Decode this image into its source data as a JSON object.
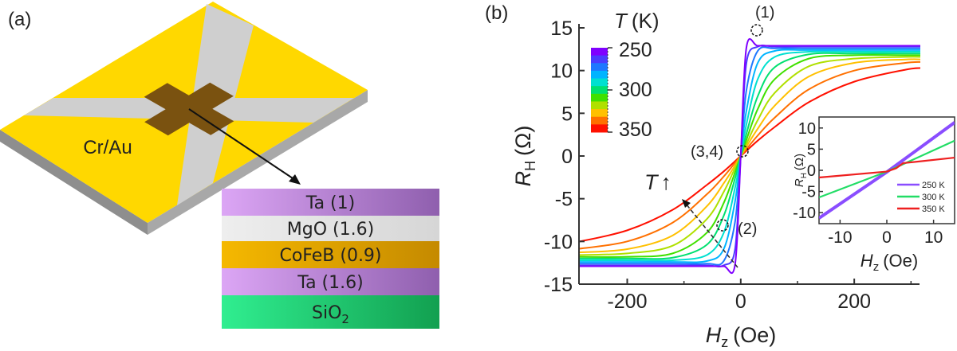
{
  "panel_a": {
    "label": "(a)",
    "substrate_label": "Cr/Au",
    "colors": {
      "gold": "#ffd800",
      "bar": "#cfcfcf",
      "cross": "#7a5210",
      "side": "#a8a8a8"
    },
    "stack": [
      {
        "text": "Ta (1)",
        "sub": "",
        "c1": "#dca6f5",
        "c2": "#8f5fae"
      },
      {
        "text": "MgO (1.6)",
        "sub": "",
        "c1": "#eeeeee",
        "c2": "#d6d6d6"
      },
      {
        "text": "CoFeB (0.9)",
        "sub": "",
        "c1": "#f5b800",
        "c2": "#c58a00"
      },
      {
        "text": "Ta (1.6)",
        "sub": "",
        "c1": "#dca6f5",
        "c2": "#8f5fae"
      },
      {
        "text": "SiO",
        "sub": "2",
        "c1": "#30ee90",
        "c2": "#12a050"
      }
    ]
  },
  "chart_data": [
    {
      "type": "line",
      "panel_label": "(b)",
      "xlabel": {
        "main": "H",
        "sub": "z",
        "unit": "(Oe)"
      },
      "ylabel": {
        "main": "R",
        "sub": "H",
        "unit": "(Ω)"
      },
      "xlim": [
        -285,
        315
      ],
      "ylim": [
        -15,
        15
      ],
      "xticks": [
        -200,
        0,
        200
      ],
      "xminor": [
        -100,
        100,
        300
      ],
      "yticks": [
        15,
        10,
        5,
        0,
        -5,
        -10,
        -15
      ],
      "grid": false,
      "colorbar": {
        "title_main": "T",
        "title_unit": "(K)",
        "ticks": [
          "250",
          "300",
          "350"
        ]
      },
      "annotations": {
        "p1": "(1)",
        "p2": "(2)",
        "p34": "(3,4)",
        "t_main": "T",
        "t_arrow": "↑"
      },
      "x": [
        -290,
        -200,
        -120,
        -60,
        -30,
        -10,
        0,
        10,
        30,
        60,
        120,
        200,
        290,
        320
      ],
      "series": [
        {
          "T": 250,
          "color": "#8000ff",
          "values": [
            -12.9,
            -12.9,
            -12.9,
            -12.9,
            -12.9,
            -12.7,
            0,
            12.7,
            12.9,
            12.9,
            12.9,
            12.9,
            12.9,
            12.9
          ]
        },
        {
          "T": 260,
          "color": "#4b3cff",
          "values": [
            -12.8,
            -12.8,
            -12.8,
            -12.8,
            -12.8,
            -10.9,
            0,
            10.9,
            12.8,
            12.8,
            12.8,
            12.8,
            12.8,
            12.8
          ]
        },
        {
          "T": 270,
          "color": "#1e78ff",
          "values": [
            -12.6,
            -12.6,
            -12.6,
            -12.6,
            -12.3,
            -7.7,
            0,
            7.7,
            12.3,
            12.6,
            12.6,
            12.6,
            12.6,
            12.6
          ]
        },
        {
          "T": 280,
          "color": "#00b4ff",
          "values": [
            -12.4,
            -12.4,
            -12.4,
            -12.3,
            -10.9,
            -5.3,
            0,
            5.3,
            10.9,
            12.3,
            12.4,
            12.4,
            12.4,
            12.4
          ]
        },
        {
          "T": 290,
          "color": "#00e0d0",
          "values": [
            -12.2,
            -12.2,
            -12.2,
            -11.6,
            -9.0,
            -3.7,
            0,
            3.7,
            9.0,
            11.6,
            12.2,
            12.2,
            12.2,
            12.2
          ]
        },
        {
          "T": 300,
          "color": "#00e070",
          "values": [
            -12.0,
            -12.0,
            -11.9,
            -10.4,
            -7.0,
            -2.6,
            0,
            2.6,
            7.0,
            10.4,
            11.9,
            12.0,
            12.0,
            12.0
          ]
        },
        {
          "T": 310,
          "color": "#40e000",
          "values": [
            -11.8,
            -11.8,
            -11.4,
            -9.0,
            -5.5,
            -1.9,
            0,
            1.9,
            5.5,
            9.0,
            11.4,
            11.8,
            11.8,
            11.8
          ]
        },
        {
          "T": 320,
          "color": "#b0e000",
          "values": [
            -11.6,
            -11.4,
            -10.5,
            -7.4,
            -4.2,
            -1.4,
            0,
            1.4,
            4.2,
            7.4,
            10.5,
            11.4,
            11.6,
            11.6
          ]
        },
        {
          "T": 330,
          "color": "#ffc000",
          "values": [
            -11.3,
            -10.9,
            -9.3,
            -5.9,
            -3.2,
            -1.1,
            0,
            1.1,
            3.2,
            5.9,
            9.3,
            10.9,
            11.3,
            11.3
          ]
        },
        {
          "T": 340,
          "color": "#ff7000",
          "values": [
            -10.9,
            -10.0,
            -7.8,
            -4.5,
            -2.4,
            -0.8,
            0,
            0.8,
            2.4,
            4.5,
            7.8,
            10.0,
            10.9,
            11.0
          ]
        },
        {
          "T": 350,
          "color": "#ff1000",
          "values": [
            -10.1,
            -8.7,
            -6.3,
            -3.4,
            -1.8,
            -0.6,
            0,
            0.6,
            1.8,
            3.4,
            6.3,
            8.7,
            10.1,
            10.3
          ]
        }
      ]
    },
    {
      "type": "line",
      "role": "inset",
      "xlabel": {
        "main": "H",
        "sub": "z",
        "unit": "(Oe)"
      },
      "ylabel": {
        "main": "R",
        "sub": "H",
        "unit": "(Ω)"
      },
      "xlim": [
        -14.5,
        14.5
      ],
      "ylim": [
        -12.6,
        12.6
      ],
      "xticks": [
        -10,
        0,
        10
      ],
      "yticks": [
        10,
        5,
        0,
        -5,
        -10
      ],
      "legend_position": "bottom-right",
      "series": [
        {
          "name": "250 K",
          "color": "#8a4dff",
          "x": [
            -14.5,
            0,
            14.5
          ],
          "values": [
            -11.3,
            -0.4,
            11.3
          ]
        },
        {
          "name": "300 K",
          "color": "#22dd66",
          "x": [
            -14.5,
            0,
            14.5
          ],
          "values": [
            -6.4,
            -0.3,
            7.0
          ]
        },
        {
          "name": "350 K",
          "color": "#ee2020",
          "x": [
            -14.5,
            0,
            2,
            3.5,
            14.5
          ],
          "values": [
            -1.7,
            -0.3,
            0.5,
            1.7,
            3.0
          ]
        }
      ]
    }
  ]
}
